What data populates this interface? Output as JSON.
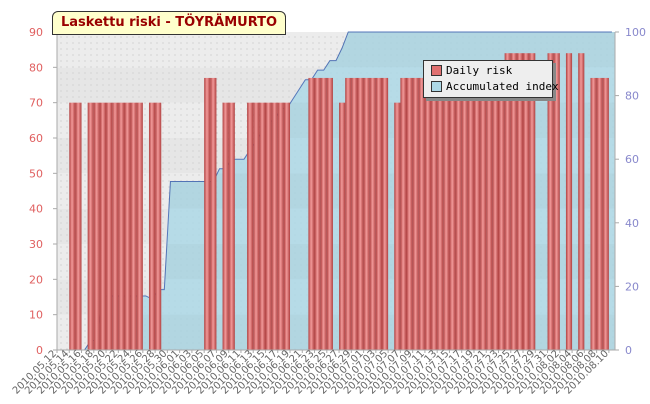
{
  "chart_data": {
    "type": "bar",
    "title": "Laskettu riski - TÖYRÄMURTO",
    "categories": [
      "2010.05.12",
      "2010.05.13",
      "2010.05.14",
      "2010.05.15",
      "2010.05.16",
      "2010.05.17",
      "2010.05.18",
      "2010.05.19",
      "2010.05.20",
      "2010.05.21",
      "2010.05.22",
      "2010.05.23",
      "2010.05.24",
      "2010.05.25",
      "2010.05.26",
      "2010.05.27",
      "2010.05.28",
      "2010.05.29",
      "2010.05.30",
      "2010.05.31",
      "2010.06.01",
      "2010.06.02",
      "2010.06.03",
      "2010.06.04",
      "2010.06.05",
      "2010.06.06",
      "2010.06.07",
      "2010.06.08",
      "2010.06.09",
      "2010.06.10",
      "2010.06.11",
      "2010.06.12",
      "2010.06.13",
      "2010.06.14",
      "2010.06.15",
      "2010.06.16",
      "2010.06.17",
      "2010.06.18",
      "2010.06.19",
      "2010.06.20",
      "2010.06.21",
      "2010.06.22",
      "2010.06.23",
      "2010.06.24",
      "2010.06.25",
      "2010.06.26",
      "2010.06.27",
      "2010.06.28",
      "2010.06.29",
      "2010.06.30",
      "2010.07.01",
      "2010.07.02",
      "2010.07.03",
      "2010.07.04",
      "2010.07.05",
      "2010.07.06",
      "2010.07.07",
      "2010.07.08",
      "2010.07.09",
      "2010.07.10",
      "2010.07.11",
      "2010.07.12",
      "2010.07.13",
      "2010.07.14",
      "2010.07.15",
      "2010.07.16",
      "2010.07.17",
      "2010.07.18",
      "2010.07.19",
      "2010.07.20",
      "2010.07.21",
      "2010.07.22",
      "2010.07.23",
      "2010.07.24",
      "2010.07.25",
      "2010.07.26",
      "2010.07.27",
      "2010.07.28",
      "2010.07.29",
      "2010.07.30",
      "2010.07.31",
      "2010.08.01",
      "2010.08.02",
      "2010.08.03",
      "2010.08.04",
      "2010.08.05",
      "2010.08.06",
      "2010.08.07",
      "2010.08.08",
      "2010.08.09",
      "2010.08.10"
    ],
    "x_tick_labels": [
      "2010.05.12",
      "2010.05.14",
      "2010.05.16",
      "2010.05.18",
      "2010.05.20",
      "2010.05.22",
      "2010.05.24",
      "2010.05.26",
      "2010.05.28",
      "2010.05.30",
      "2010.06.01",
      "2010.06.03",
      "2010.06.05",
      "2010.06.07",
      "2010.06.09",
      "2010.06.11",
      "2010.06.13",
      "2010.06.15",
      "2010.06.17",
      "2010.06.19",
      "2010.06.21",
      "2010.06.23",
      "2010.06.25",
      "2010.06.27",
      "2010.06.29",
      "2010.07.01",
      "2010.07.03",
      "2010.07.05",
      "2010.07.07",
      "2010.07.09",
      "2010.07.11",
      "2010.07.13",
      "2010.07.15",
      "2010.07.17",
      "2010.07.19",
      "2010.07.21",
      "2010.07.23",
      "2010.07.25",
      "2010.07.27",
      "2010.07.29",
      "2010.07.31",
      "2010.08.02",
      "2010.08.04",
      "2010.08.06",
      "2010.08.08",
      "2010.08.10"
    ],
    "series": [
      {
        "name": "Daily risk",
        "axis": "left",
        "type": "bar",
        "color": "#e07070",
        "values": [
          0,
          0,
          70,
          70,
          0,
          70,
          70,
          70,
          70,
          70,
          70,
          70,
          70,
          70,
          0,
          70,
          70,
          0,
          0,
          0,
          0,
          0,
          0,
          0,
          77,
          77,
          0,
          70,
          70,
          0,
          0,
          70,
          70,
          70,
          70,
          70,
          70,
          70,
          0,
          0,
          0,
          77,
          77,
          77,
          77,
          0,
          70,
          77,
          77,
          77,
          77,
          77,
          77,
          77,
          0,
          70,
          77,
          77,
          77,
          77,
          77,
          77,
          77,
          77,
          77,
          77,
          77,
          77,
          77,
          77,
          77,
          77,
          77,
          84,
          84,
          84,
          84,
          84,
          0,
          0,
          84,
          84,
          0,
          84,
          0,
          84,
          0,
          77,
          77,
          77,
          0
        ]
      },
      {
        "name": "Accumulated index",
        "axis": "right",
        "type": "area",
        "color": "#add8e6",
        "values": [
          0,
          0,
          0,
          0,
          0,
          3,
          3,
          17,
          17,
          17,
          17,
          17,
          17,
          17,
          17,
          16,
          19,
          19,
          53,
          53,
          53,
          53,
          53,
          53,
          53,
          53,
          57,
          57,
          60,
          60,
          60,
          63,
          66,
          69,
          72,
          72,
          76,
          76,
          79,
          82,
          85,
          85,
          88,
          88,
          91,
          91,
          95,
          100,
          100,
          100,
          100,
          100,
          100,
          100,
          100,
          100,
          100,
          100,
          100,
          100,
          100,
          100,
          100,
          100,
          100,
          100,
          100,
          100,
          100,
          100,
          100,
          100,
          100,
          100,
          100,
          100,
          100,
          100,
          100,
          100,
          100,
          100,
          100,
          100,
          100,
          100,
          100,
          100,
          100,
          100,
          100
        ]
      }
    ],
    "y_left": {
      "min": 0,
      "max": 90,
      "ticks": [
        0,
        10,
        20,
        30,
        40,
        50,
        60,
        70,
        80,
        90
      ],
      "color": "#e06060"
    },
    "y_right": {
      "min": 0,
      "max": 100,
      "ticks": [
        0,
        20,
        40,
        60,
        80,
        100
      ],
      "color": "#8888cc"
    },
    "legend_position": "top-right",
    "grid": true
  }
}
